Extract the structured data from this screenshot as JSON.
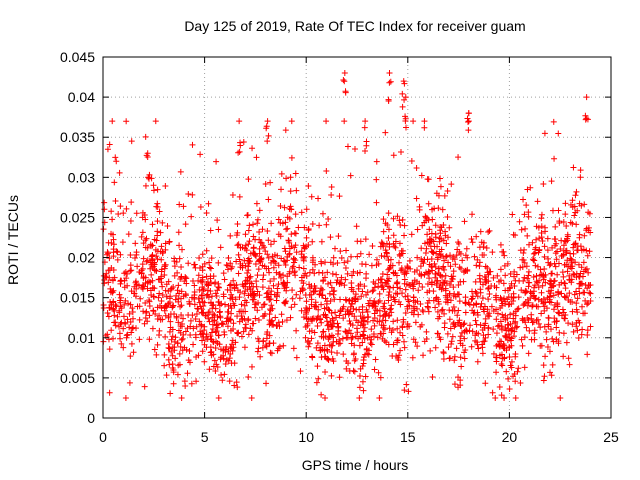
{
  "chart_data": {
    "type": "scatter",
    "title": "Day 125 of 2019, Rate Of TEC Index for receiver guam",
    "xlabel": "GPS time / hours",
    "ylabel": "ROTI / TECUs",
    "xlim": [
      0,
      25
    ],
    "ylim": [
      0,
      0.045
    ],
    "x_ticks": [
      0,
      5,
      10,
      15,
      20,
      25
    ],
    "x_tick_labels": [
      "0",
      "5",
      "10",
      "15",
      "20",
      "25"
    ],
    "y_ticks": [
      0,
      0.005,
      0.01,
      0.015,
      0.02,
      0.025,
      0.03,
      0.035,
      0.04,
      0.045
    ],
    "y_tick_labels": [
      "0",
      "0.005",
      "0.01",
      "0.015",
      "0.02",
      "0.025",
      "0.03",
      "0.035",
      "0.04",
      "0.045"
    ],
    "grid": true,
    "marker": "+",
    "marker_color": "#ff0000",
    "series": [
      {
        "name": "ROTI",
        "x_range": [
          0,
          24
        ],
        "typical_range": [
          0.005,
          0.025
        ],
        "median": 0.015,
        "peaks": [
          {
            "x": 11.9,
            "y": 0.043
          },
          {
            "x": 14.1,
            "y": 0.043
          },
          {
            "x": 14.8,
            "y": 0.042
          },
          {
            "x": 23.8,
            "y": 0.04
          },
          {
            "x": 14.9,
            "y": 0.04
          },
          {
            "x": 18.0,
            "y": 0.038
          },
          {
            "x": 6.7,
            "y": 0.037
          },
          {
            "x": 8.1,
            "y": 0.037
          },
          {
            "x": 12.9,
            "y": 0.037
          },
          {
            "x": 2.2,
            "y": 0.033
          }
        ]
      }
    ]
  }
}
